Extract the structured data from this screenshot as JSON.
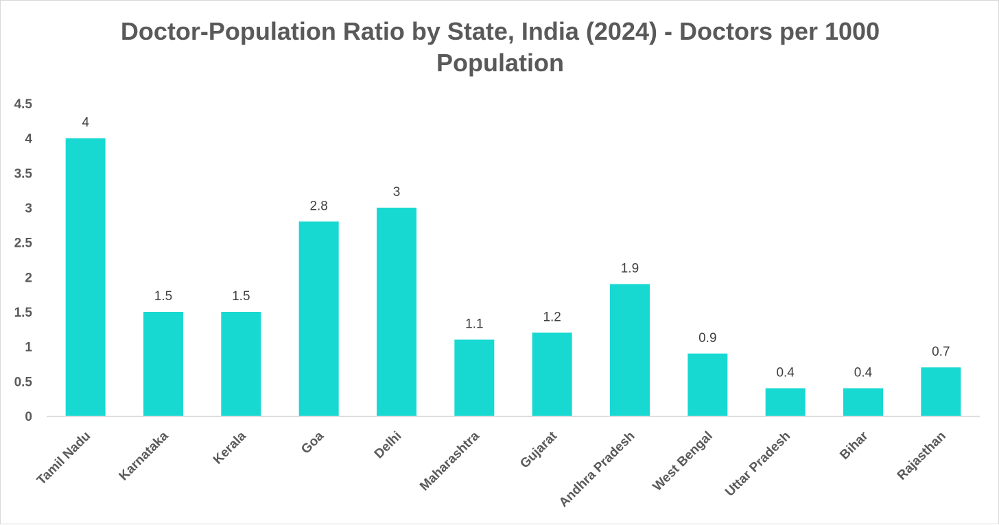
{
  "chart_data": {
    "type": "bar",
    "title_lines": [
      "Doctor-Population Ratio by State, India (2024) - Doctors per 1000",
      "Population"
    ],
    "categories": [
      "Tamil Nadu",
      "Karnataka",
      "Kerala",
      "Goa",
      "Delhi",
      "Maharashtra",
      "Gujarat",
      "Andhra Pradesh",
      "West Bengal",
      "Uttar Pradesh",
      "Bihar",
      "Rajasthan"
    ],
    "values": [
      4,
      1.5,
      1.5,
      2.8,
      3,
      1.1,
      1.2,
      1.9,
      0.9,
      0.4,
      0.4,
      0.7
    ],
    "data_labels": [
      "4",
      "1.5",
      "1.5",
      "2.8",
      "3",
      "1.1",
      "1.2",
      "1.9",
      "0.9",
      "0.4",
      "0.4",
      "0.7"
    ],
    "yticks": [
      "0",
      "0.5",
      "1",
      "1.5",
      "2",
      "2.5",
      "3",
      "3.5",
      "4",
      "4.5"
    ],
    "ylim": [
      0,
      4.5
    ],
    "xlabel": "",
    "ylabel": "",
    "grid": false,
    "legend": "none",
    "bar_color": "#17D9D2"
  }
}
